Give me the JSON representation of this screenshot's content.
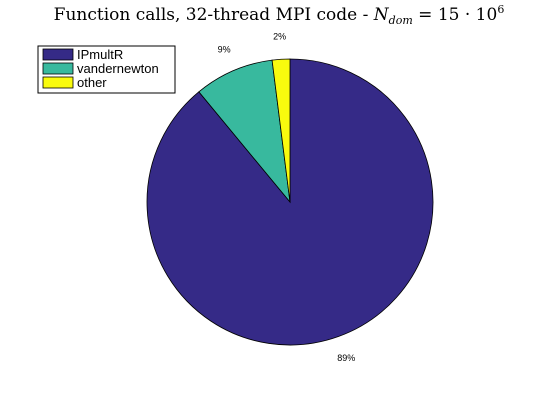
{
  "chart_data": {
    "type": "pie",
    "title": {
      "text": "Function calls, 32-thread MPI code - ",
      "math_symbol": "N",
      "math_subscript": "dom",
      "math_rest": " = 15 · 10",
      "math_exponent": "6"
    },
    "slices": [
      {
        "label": "IPmultR",
        "value": 89,
        "pct_label": "89%",
        "color": "#352a87"
      },
      {
        "label": "vandernewton",
        "value": 9,
        "pct_label": "9%",
        "color": "#38b99e"
      },
      {
        "label": "other",
        "value": 2,
        "pct_label": "2%",
        "color": "#f9fb0e"
      }
    ],
    "legend_position": "top-left",
    "direction": "clockwise",
    "start": "top"
  }
}
